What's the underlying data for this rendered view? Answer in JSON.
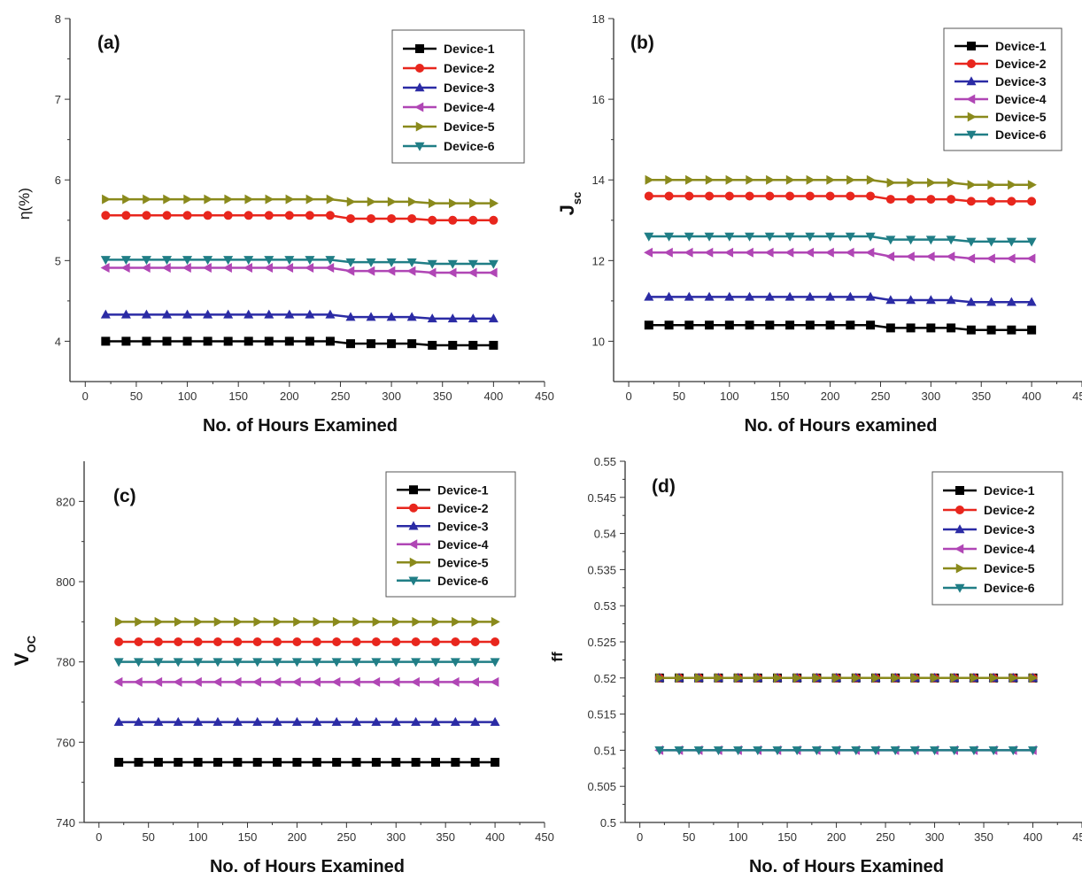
{
  "colors": {
    "Device-1": "#000000",
    "Device-2": "#e8261d",
    "Device-3": "#2b2ba5",
    "Device-4": "#b046b5",
    "Device-5": "#8a8a1c",
    "Device-6": "#207e86"
  },
  "markers": {
    "Device-1": "square",
    "Device-2": "circle",
    "Device-3": "triangle-up",
    "Device-4": "triangle-left",
    "Device-5": "triangle-right",
    "Device-6": "triangle-down"
  },
  "chart_data": [
    {
      "type": "line",
      "panel_label": "(a)",
      "xlabel": "No. of Hours Examined",
      "ylabel": "η(%)",
      "ylabel_sub": "",
      "xlim": [
        -15,
        450
      ],
      "ylim": [
        3.5,
        8
      ],
      "xticks": [
        0,
        50,
        100,
        150,
        200,
        250,
        300,
        350,
        400,
        450
      ],
      "yticks": [
        4,
        5,
        6,
        7,
        8
      ],
      "x": [
        20,
        40,
        60,
        80,
        100,
        120,
        140,
        160,
        180,
        200,
        220,
        240,
        260,
        280,
        300,
        320,
        340,
        360,
        380,
        400
      ],
      "series": [
        {
          "name": "Device-1",
          "values": [
            4.0,
            4.0,
            4.0,
            4.0,
            4.0,
            4.0,
            4.0,
            4.0,
            4.0,
            4.0,
            4.0,
            4.0,
            3.97,
            3.97,
            3.97,
            3.97,
            3.95,
            3.95,
            3.95,
            3.95
          ]
        },
        {
          "name": "Device-2",
          "values": [
            5.56,
            5.56,
            5.56,
            5.56,
            5.56,
            5.56,
            5.56,
            5.56,
            5.56,
            5.56,
            5.56,
            5.56,
            5.52,
            5.52,
            5.52,
            5.52,
            5.5,
            5.5,
            5.5,
            5.5
          ]
        },
        {
          "name": "Device-3",
          "values": [
            4.33,
            4.33,
            4.33,
            4.33,
            4.33,
            4.33,
            4.33,
            4.33,
            4.33,
            4.33,
            4.33,
            4.33,
            4.3,
            4.3,
            4.3,
            4.3,
            4.28,
            4.28,
            4.28,
            4.28
          ]
        },
        {
          "name": "Device-4",
          "values": [
            4.91,
            4.91,
            4.91,
            4.91,
            4.91,
            4.91,
            4.91,
            4.91,
            4.91,
            4.91,
            4.91,
            4.91,
            4.87,
            4.87,
            4.87,
            4.87,
            4.85,
            4.85,
            4.85,
            4.85
          ]
        },
        {
          "name": "Device-5",
          "values": [
            5.76,
            5.76,
            5.76,
            5.76,
            5.76,
            5.76,
            5.76,
            5.76,
            5.76,
            5.76,
            5.76,
            5.76,
            5.73,
            5.73,
            5.73,
            5.73,
            5.71,
            5.71,
            5.71,
            5.71
          ]
        },
        {
          "name": "Device-6",
          "values": [
            5.01,
            5.01,
            5.01,
            5.01,
            5.01,
            5.01,
            5.01,
            5.01,
            5.01,
            5.01,
            5.01,
            5.01,
            4.98,
            4.98,
            4.98,
            4.98,
            4.96,
            4.96,
            4.96,
            4.96
          ]
        }
      ],
      "legend_placement": "top-right"
    },
    {
      "type": "line",
      "panel_label": "(b)",
      "xlabel": "No. of Hours examined",
      "ylabel": "J",
      "ylabel_sub": "sc",
      "xlim": [
        -15,
        450
      ],
      "ylim": [
        9,
        18
      ],
      "xticks": [
        0,
        50,
        100,
        150,
        200,
        250,
        300,
        350,
        400,
        450
      ],
      "yticks": [
        10,
        12,
        14,
        16,
        18
      ],
      "x": [
        20,
        40,
        60,
        80,
        100,
        120,
        140,
        160,
        180,
        200,
        220,
        240,
        260,
        280,
        300,
        320,
        340,
        360,
        380,
        400
      ],
      "series": [
        {
          "name": "Device-1",
          "values": [
            10.4,
            10.4,
            10.4,
            10.4,
            10.4,
            10.4,
            10.4,
            10.4,
            10.4,
            10.4,
            10.4,
            10.4,
            10.33,
            10.33,
            10.33,
            10.33,
            10.28,
            10.28,
            10.28,
            10.28
          ]
        },
        {
          "name": "Device-2",
          "values": [
            13.6,
            13.6,
            13.6,
            13.6,
            13.6,
            13.6,
            13.6,
            13.6,
            13.6,
            13.6,
            13.6,
            13.6,
            13.52,
            13.52,
            13.52,
            13.52,
            13.47,
            13.47,
            13.47,
            13.47
          ]
        },
        {
          "name": "Device-3",
          "values": [
            11.1,
            11.1,
            11.1,
            11.1,
            11.1,
            11.1,
            11.1,
            11.1,
            11.1,
            11.1,
            11.1,
            11.1,
            11.02,
            11.02,
            11.02,
            11.02,
            10.97,
            10.97,
            10.97,
            10.97
          ]
        },
        {
          "name": "Device-4",
          "values": [
            12.2,
            12.2,
            12.2,
            12.2,
            12.2,
            12.2,
            12.2,
            12.2,
            12.2,
            12.2,
            12.2,
            12.2,
            12.1,
            12.1,
            12.1,
            12.1,
            12.05,
            12.05,
            12.05,
            12.05
          ]
        },
        {
          "name": "Device-5",
          "values": [
            14.0,
            14.0,
            14.0,
            14.0,
            14.0,
            14.0,
            14.0,
            14.0,
            14.0,
            14.0,
            14.0,
            14.0,
            13.93,
            13.93,
            13.93,
            13.93,
            13.88,
            13.88,
            13.88,
            13.88
          ]
        },
        {
          "name": "Device-6",
          "values": [
            12.6,
            12.6,
            12.6,
            12.6,
            12.6,
            12.6,
            12.6,
            12.6,
            12.6,
            12.6,
            12.6,
            12.6,
            12.52,
            12.52,
            12.52,
            12.52,
            12.47,
            12.47,
            12.47,
            12.47
          ]
        }
      ],
      "legend_placement": "top-right"
    },
    {
      "type": "line",
      "panel_label": "(c)",
      "xlabel": "No. of Hours Examined",
      "ylabel": "V",
      "ylabel_sub": "OC",
      "xlim": [
        -15,
        450
      ],
      "ylim": [
        740,
        830
      ],
      "xticks": [
        0,
        50,
        100,
        150,
        200,
        250,
        300,
        350,
        400,
        450
      ],
      "yticks": [
        740,
        760,
        780,
        800,
        820
      ],
      "x": [
        20,
        40,
        60,
        80,
        100,
        120,
        140,
        160,
        180,
        200,
        220,
        240,
        260,
        280,
        300,
        320,
        340,
        360,
        380,
        400
      ],
      "series": [
        {
          "name": "Device-1",
          "values": [
            755,
            755,
            755,
            755,
            755,
            755,
            755,
            755,
            755,
            755,
            755,
            755,
            755,
            755,
            755,
            755,
            755,
            755,
            755,
            755
          ]
        },
        {
          "name": "Device-2",
          "values": [
            785,
            785,
            785,
            785,
            785,
            785,
            785,
            785,
            785,
            785,
            785,
            785,
            785,
            785,
            785,
            785,
            785,
            785,
            785,
            785
          ]
        },
        {
          "name": "Device-3",
          "values": [
            765,
            765,
            765,
            765,
            765,
            765,
            765,
            765,
            765,
            765,
            765,
            765,
            765,
            765,
            765,
            765,
            765,
            765,
            765,
            765
          ]
        },
        {
          "name": "Device-4",
          "values": [
            775,
            775,
            775,
            775,
            775,
            775,
            775,
            775,
            775,
            775,
            775,
            775,
            775,
            775,
            775,
            775,
            775,
            775,
            775,
            775
          ]
        },
        {
          "name": "Device-5",
          "values": [
            790,
            790,
            790,
            790,
            790,
            790,
            790,
            790,
            790,
            790,
            790,
            790,
            790,
            790,
            790,
            790,
            790,
            790,
            790,
            790
          ]
        },
        {
          "name": "Device-6",
          "values": [
            780,
            780,
            780,
            780,
            780,
            780,
            780,
            780,
            780,
            780,
            780,
            780,
            780,
            780,
            780,
            780,
            780,
            780,
            780,
            780
          ]
        }
      ],
      "legend_placement": "top-right"
    },
    {
      "type": "line",
      "panel_label": "(d)",
      "xlabel": "No. of Hours Examined",
      "ylabel": "ff",
      "ylabel_sub": "",
      "xlim": [
        -15,
        450
      ],
      "ylim": [
        0.5,
        0.55
      ],
      "xticks": [
        0,
        50,
        100,
        150,
        200,
        250,
        300,
        350,
        400,
        450
      ],
      "yticks": [
        0.5,
        0.505,
        0.51,
        0.515,
        0.52,
        0.525,
        0.53,
        0.535,
        0.54,
        0.545,
        0.55
      ],
      "x": [
        20,
        40,
        60,
        80,
        100,
        120,
        140,
        160,
        180,
        200,
        220,
        240,
        260,
        280,
        300,
        320,
        340,
        360,
        380,
        400
      ],
      "series": [
        {
          "name": "Device-1",
          "values": [
            0.52,
            0.52,
            0.52,
            0.52,
            0.52,
            0.52,
            0.52,
            0.52,
            0.52,
            0.52,
            0.52,
            0.52,
            0.52,
            0.52,
            0.52,
            0.52,
            0.52,
            0.52,
            0.52,
            0.52
          ]
        },
        {
          "name": "Device-2",
          "values": [
            0.52,
            0.52,
            0.52,
            0.52,
            0.52,
            0.52,
            0.52,
            0.52,
            0.52,
            0.52,
            0.52,
            0.52,
            0.52,
            0.52,
            0.52,
            0.52,
            0.52,
            0.52,
            0.52,
            0.52
          ]
        },
        {
          "name": "Device-3",
          "values": [
            0.52,
            0.52,
            0.52,
            0.52,
            0.52,
            0.52,
            0.52,
            0.52,
            0.52,
            0.52,
            0.52,
            0.52,
            0.52,
            0.52,
            0.52,
            0.52,
            0.52,
            0.52,
            0.52,
            0.52
          ]
        },
        {
          "name": "Device-4",
          "values": [
            0.51,
            0.51,
            0.51,
            0.51,
            0.51,
            0.51,
            0.51,
            0.51,
            0.51,
            0.51,
            0.51,
            0.51,
            0.51,
            0.51,
            0.51,
            0.51,
            0.51,
            0.51,
            0.51,
            0.51
          ]
        },
        {
          "name": "Device-5",
          "values": [
            0.52,
            0.52,
            0.52,
            0.52,
            0.52,
            0.52,
            0.52,
            0.52,
            0.52,
            0.52,
            0.52,
            0.52,
            0.52,
            0.52,
            0.52,
            0.52,
            0.52,
            0.52,
            0.52,
            0.52
          ]
        },
        {
          "name": "Device-6",
          "values": [
            0.51,
            0.51,
            0.51,
            0.51,
            0.51,
            0.51,
            0.51,
            0.51,
            0.51,
            0.51,
            0.51,
            0.51,
            0.51,
            0.51,
            0.51,
            0.51,
            0.51,
            0.51,
            0.51,
            0.51
          ]
        }
      ],
      "legend_placement": "top-right"
    }
  ]
}
